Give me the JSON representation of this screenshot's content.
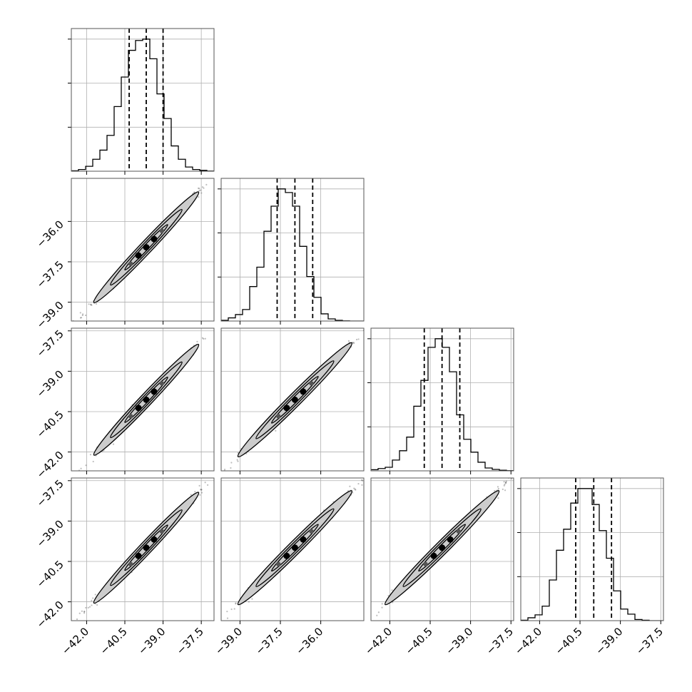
{
  "colors": {
    "axes": "#555555",
    "grid": "#b0b0b0",
    "hist": "#000000",
    "quantile": "#000000",
    "density_dark": "#000000",
    "density_light": "#cccccc",
    "points": "#444444",
    "background": "#ffffff"
  },
  "chart_data": {
    "type": "corner",
    "n_params": 4,
    "title": "",
    "grid": true,
    "params": [
      {
        "label": "",
        "range": [
          -42.6,
          -37.0
        ],
        "ticks": [
          -42.0,
          -40.5,
          -39.0,
          -37.5
        ],
        "tick_labels": [
          "−42.0",
          "−40.5",
          "−39.0",
          "−37.5"
        ]
      },
      {
        "label": "",
        "range": [
          -39.7,
          -34.4
        ],
        "ticks": [
          -39.0,
          -37.5,
          -36.0
        ],
        "tick_labels": [
          "−39.0",
          "−37.5",
          "−36.0"
        ]
      },
      {
        "label": "",
        "range": [
          -42.7,
          -37.4
        ],
        "ticks": [
          -42.0,
          -40.5,
          -39.0,
          -37.5
        ],
        "tick_labels": [
          "−42.0",
          "−40.5",
          "−39.0",
          "−37.5"
        ]
      },
      {
        "label": "",
        "range": [
          -42.7,
          -37.4
        ],
        "ticks": [
          -42.0,
          -40.5,
          -39.0,
          -37.5
        ],
        "tick_labels": [
          "−42.0",
          "−40.5",
          "−39.0",
          "−37.5"
        ]
      }
    ],
    "histograms": [
      {
        "param": 0,
        "bins": 20,
        "counts": [
          0.3,
          1.2,
          3.5,
          8.5,
          15.0,
          25.5,
          46.0,
          67.0,
          86.0,
          93.0,
          94.0,
          80.0,
          55.0,
          37.5,
          18.0,
          8.5,
          3.0,
          1.2,
          0.6,
          0.1
        ],
        "quantiles": [
          -40.33,
          -39.66,
          -39.0
        ],
        "ytick_fractions": [
          0.333,
          0.667,
          1.0
        ]
      },
      {
        "param": 1,
        "bins": 20,
        "counts": [
          0.5,
          2.2,
          4.5,
          8.0,
          24.0,
          37.5,
          62.5,
          80.0,
          92.0,
          89.5,
          80.0,
          52.0,
          31.0,
          16.5,
          5.0,
          1.5,
          0.5,
          0.1,
          0.0,
          0.0
        ],
        "quantiles": [
          -37.62,
          -36.96,
          -36.3
        ],
        "ytick_fractions": [
          0.333,
          0.667,
          1.0
        ]
      },
      {
        "param": 2,
        "bins": 20,
        "counts": [
          0.8,
          1.6,
          2.5,
          7.5,
          14.0,
          23.5,
          45.0,
          63.0,
          86.0,
          92.0,
          86.0,
          69.0,
          39.0,
          22.0,
          13.0,
          6.0,
          2.0,
          1.0,
          0.4,
          0.1
        ],
        "quantiles": [
          -40.72,
          -40.06,
          -39.4
        ],
        "ytick_fractions": [
          0.333,
          0.667,
          1.0
        ]
      },
      {
        "param": 3,
        "bins": 20,
        "counts": [
          0.3,
          2.0,
          4.0,
          10.0,
          28.0,
          48.5,
          63.0,
          81.0,
          91.0,
          91.0,
          80.0,
          62.0,
          43.0,
          20.5,
          8.0,
          4.5,
          0.8,
          0.3,
          0.0,
          0.0
        ],
        "quantiles": [
          -40.66,
          -39.99,
          -39.33
        ],
        "ytick_fractions": [
          0.333,
          0.667,
          1.0
        ]
      }
    ],
    "pairs": [
      {
        "row": 1,
        "col": 0,
        "center": [
          -39.66,
          -36.96
        ],
        "sx": 0.68,
        "sy": 0.68,
        "rho": 0.995
      },
      {
        "row": 2,
        "col": 0,
        "center": [
          -39.66,
          -40.06
        ],
        "sx": 0.68,
        "sy": 0.68,
        "rho": 0.995
      },
      {
        "row": 2,
        "col": 1,
        "center": [
          -36.96,
          -40.06
        ],
        "sx": 0.68,
        "sy": 0.68,
        "rho": 0.995
      },
      {
        "row": 3,
        "col": 0,
        "center": [
          -39.66,
          -39.99
        ],
        "sx": 0.68,
        "sy": 0.68,
        "rho": 0.995
      },
      {
        "row": 3,
        "col": 1,
        "center": [
          -36.96,
          -39.99
        ],
        "sx": 0.68,
        "sy": 0.68,
        "rho": 0.995
      },
      {
        "row": 3,
        "col": 2,
        "center": [
          -40.06,
          -39.99
        ],
        "sx": 0.68,
        "sy": 0.68,
        "rho": 0.995
      }
    ]
  }
}
